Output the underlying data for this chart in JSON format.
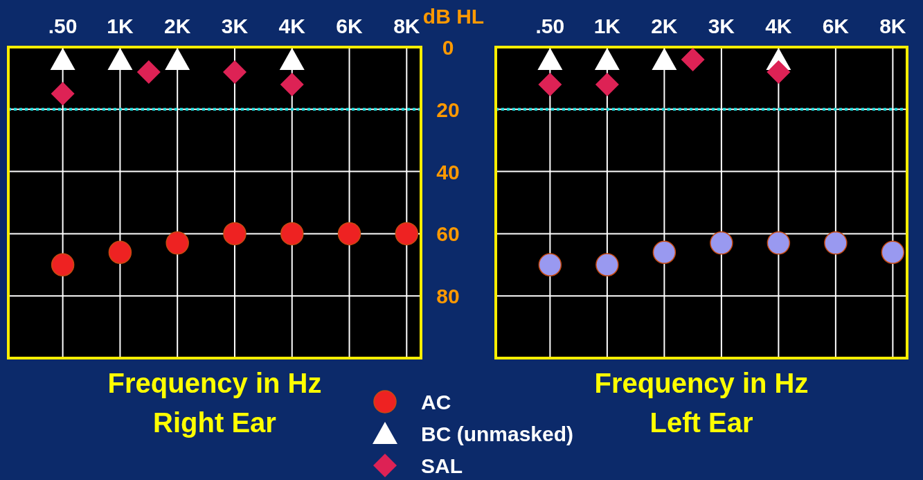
{
  "chart_data": [
    {
      "type": "scatter",
      "title": "Right Ear",
      "xlabel": "Frequency in Hz",
      "ylabel": "dB HL",
      "categories": [
        ".50",
        null,
        "1K",
        null,
        "2K",
        null,
        "3K",
        null,
        "4K",
        null,
        "6K",
        null,
        "8K"
      ],
      "series": [
        {
          "name": "AC",
          "color": "#ee2222",
          "marker": "circle",
          "values": [
            70,
            null,
            66,
            null,
            63,
            null,
            60,
            null,
            60,
            null,
            60,
            null,
            60
          ]
        },
        {
          "name": "BC (unmasked)",
          "color": "#ffffff",
          "marker": "triangle",
          "values": [
            4,
            null,
            4,
            null,
            4,
            null,
            null,
            null,
            4,
            null,
            null,
            null,
            null
          ]
        },
        {
          "name": "SAL",
          "color": "#dd2255",
          "marker": "diamond",
          "values": [
            15,
            null,
            null,
            8,
            null,
            null,
            8,
            null,
            12,
            null,
            null,
            null,
            null
          ]
        }
      ],
      "ylim": [
        100,
        0
      ],
      "yticks": [
        0,
        20,
        40,
        60,
        80
      ],
      "grid": true,
      "legend": "bottom",
      "ref_lines": [
        {
          "axis": "y",
          "value": 20,
          "color": "#22dddd",
          "line_style": "dotted"
        }
      ]
    },
    {
      "type": "scatter",
      "title": "Left Ear",
      "xlabel": "Frequency in Hz",
      "categories": [
        ".50",
        null,
        "1K",
        null,
        "2K",
        null,
        "3K",
        null,
        "4K",
        null,
        "6K",
        null,
        "8K"
      ],
      "series": [
        {
          "color": "#9999f0",
          "marker": "circle",
          "values": [
            70,
            null,
            70,
            null,
            66,
            null,
            63,
            null,
            63,
            null,
            63,
            null,
            66
          ]
        },
        {
          "color": "#ffffff",
          "marker": "triangle",
          "values": [
            4,
            null,
            4,
            null,
            4,
            null,
            null,
            null,
            4,
            null,
            null,
            null,
            null
          ]
        },
        {
          "color": "#dd2255",
          "marker": "diamond",
          "values": [
            12,
            null,
            12,
            null,
            null,
            4,
            null,
            null,
            8,
            null,
            null,
            null,
            null
          ]
        }
      ],
      "ylim": [
        100,
        0
      ],
      "yticks": [
        0,
        20,
        40,
        60,
        80
      ],
      "grid": true,
      "tick_labels": "x",
      "ref_lines": [
        {
          "axis": "y",
          "value": 20,
          "color": "#22dddd",
          "line_style": "dotted"
        }
      ]
    }
  ]
}
